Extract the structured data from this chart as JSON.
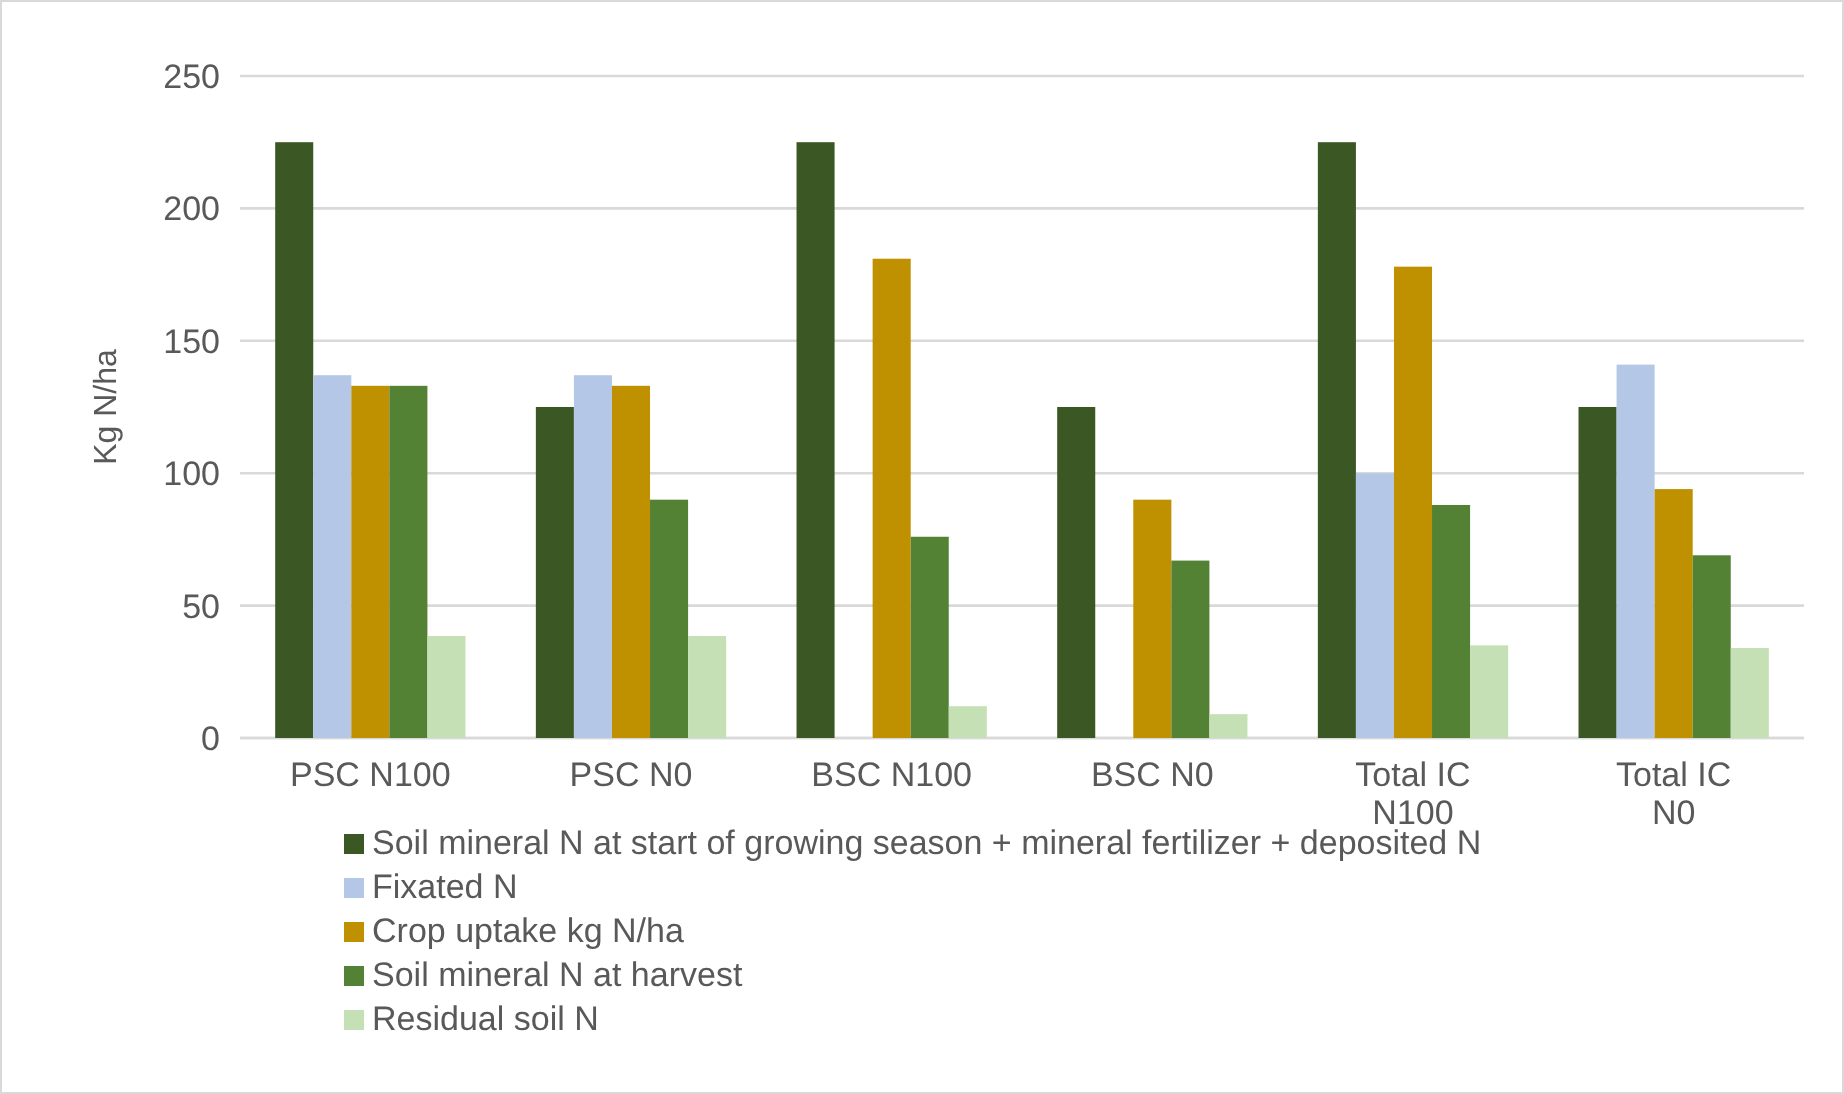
{
  "chart_data": {
    "type": "bar",
    "ylabel": "Kg N/ha",
    "categories": [
      "PSC N100",
      "PSC N0",
      "BSC N100",
      "BSC N0",
      "Total IC N100",
      "Total IC N0"
    ],
    "series": [
      {
        "name": "Soil mineral N at start of growing season + mineral fertilizer + deposited N",
        "color": "#3b5724",
        "values": [
          225,
          125,
          225,
          125,
          225,
          125
        ]
      },
      {
        "name": "Fixated N",
        "color": "#b4c7e7",
        "values": [
          137,
          137,
          null,
          null,
          100,
          141
        ]
      },
      {
        "name": "Crop uptake kg N/ha",
        "color": "#bf9000",
        "values": [
          133,
          133,
          181,
          90,
          178,
          94
        ]
      },
      {
        "name": "Soil mineral N at harvest",
        "color": "#548235",
        "values": [
          133,
          90,
          76,
          67,
          88,
          69
        ]
      },
      {
        "name": "Residual soil N",
        "color": "#c5e0b4",
        "values": [
          38.5,
          38.5,
          12,
          9,
          35,
          34
        ]
      }
    ],
    "ylim": [
      0,
      250
    ],
    "yticks": [
      0,
      50,
      100,
      150,
      200,
      250
    ],
    "grid": "y",
    "legend": "bottom"
  }
}
